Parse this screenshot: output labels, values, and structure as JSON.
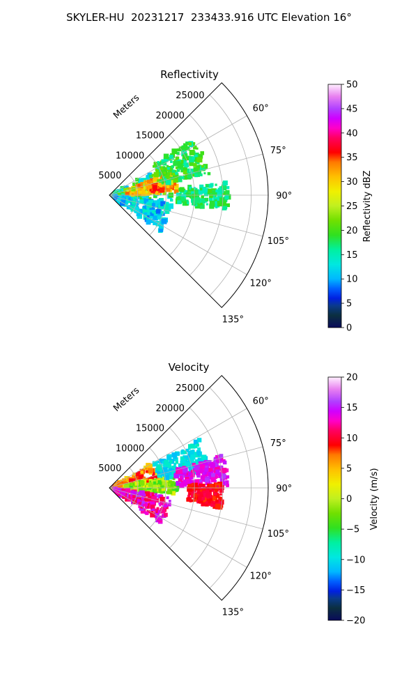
{
  "figure": {
    "title": "SKYLER-HU  20231217  233433.916 UTC Elevation 16°"
  },
  "colors": {
    "ring": "#b0b0b0",
    "frame": "#000000",
    "text": "#000000",
    "background": "#ffffff"
  },
  "chart_data": [
    {
      "type": "heatmap",
      "projection": "polar-sector",
      "title": "Reflectivity",
      "range_label": "Meters",
      "range_unit": "m",
      "range_ticks": [
        5000,
        10000,
        15000,
        20000,
        25000
      ],
      "rlim": [
        0,
        28000
      ],
      "azimuth_ticks": [
        "60°",
        "75°",
        "90°",
        "105°",
        "120°",
        "135°"
      ],
      "azimuth_tick_values": [
        60,
        75,
        90,
        105,
        120,
        135
      ],
      "azimuth_range": [
        45,
        135
      ],
      "grid": true,
      "colorbar": {
        "label": "Reflectivity dBZ",
        "ticks": [
          "0",
          "5",
          "10",
          "15",
          "20",
          "25",
          "30",
          "35",
          "40",
          "45",
          "50"
        ],
        "min": 0,
        "max": 50,
        "colormap": "pyart_HomeyerRainbow"
      },
      "echo_regions": [
        {
          "az": [
            60,
            100
          ],
          "r": [
            0,
            11000
          ],
          "value_range": [
            10,
            22
          ]
        },
        {
          "az": [
            70,
            88
          ],
          "r": [
            3000,
            12000
          ],
          "value_range": [
            22,
            35
          ]
        },
        {
          "az": [
            78,
            85
          ],
          "r": [
            7000,
            10500
          ],
          "value_range": [
            30,
            37
          ]
        },
        {
          "az": [
            55,
            78
          ],
          "r": [
            9000,
            18000
          ],
          "value_range": [
            15,
            22
          ]
        },
        {
          "az": [
            98,
            125
          ],
          "r": [
            1000,
            11000
          ],
          "value_range": [
            8,
            15
          ]
        },
        {
          "az": [
            84,
            97
          ],
          "r": [
            12000,
            21000
          ],
          "value_range": [
            14,
            20
          ]
        }
      ]
    },
    {
      "type": "heatmap",
      "projection": "polar-sector",
      "title": "Velocity",
      "range_label": "Meters",
      "range_unit": "m",
      "range_ticks": [
        5000,
        10000,
        15000,
        20000,
        25000
      ],
      "rlim": [
        0,
        28000
      ],
      "azimuth_ticks": [
        "60°",
        "75°",
        "90°",
        "105°",
        "120°",
        "135°"
      ],
      "azimuth_tick_values": [
        60,
        75,
        90,
        105,
        120,
        135
      ],
      "azimuth_range": [
        45,
        135
      ],
      "grid": true,
      "colorbar": {
        "label": "Velocity (m/s)",
        "ticks": [
          "−20",
          "−15",
          "−10",
          "−5",
          "0",
          "5",
          "10",
          "15",
          "20"
        ],
        "min": -20,
        "max": 20,
        "colormap": "pyart_BuDRd18"
      },
      "echo_regions": [
        {
          "az": [
            60,
            92
          ],
          "r": [
            0,
            9000
          ],
          "value_range": [
            3,
            10
          ]
        },
        {
          "az": [
            80,
            95
          ],
          "r": [
            3000,
            12000
          ],
          "value_range": [
            -5,
            2
          ]
        },
        {
          "az": [
            62,
            80
          ],
          "r": [
            9000,
            18000
          ],
          "value_range": [
            -12,
            -8
          ]
        },
        {
          "az": [
            74,
            90
          ],
          "r": [
            12000,
            21000
          ],
          "value_range": [
            12,
            16
          ]
        },
        {
          "az": [
            98,
            125
          ],
          "r": [
            1000,
            11000
          ],
          "value_range": [
            10,
            16
          ]
        },
        {
          "az": [
            88,
            100
          ],
          "r": [
            14000,
            20000
          ],
          "value_range": [
            8,
            11
          ]
        }
      ]
    }
  ]
}
